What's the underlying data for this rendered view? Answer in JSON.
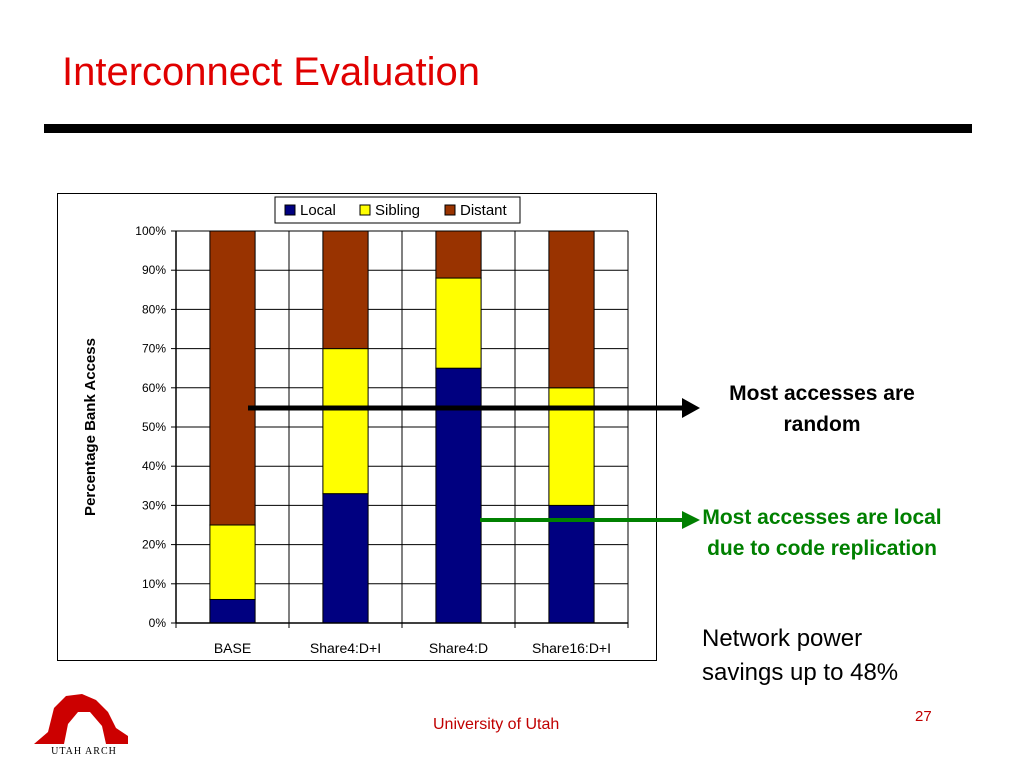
{
  "slide": {
    "title": "Interconnect Evaluation",
    "callout_random": "Most accesses are random",
    "callout_local": "Most accesses are local due to code replication",
    "power_note_line1": "Network power",
    "power_note_line2": "savings up to 48%",
    "footer": "University of Utah",
    "page_number": "27",
    "logo_text": "UTAH ARCH"
  },
  "colors": {
    "title": "#e00000",
    "local": "#000080",
    "sibling": "#ffff00",
    "distant": "#993300",
    "callout_local": "#008000",
    "footer": "#c00000"
  },
  "chart_data": {
    "type": "bar",
    "stacked": true,
    "categories": [
      "BASE",
      "Share4:D+I",
      "Share4:D",
      "Share16:D+I"
    ],
    "series": [
      {
        "name": "Local",
        "values": [
          6,
          33,
          65,
          30
        ]
      },
      {
        "name": "Sibling",
        "values": [
          19,
          37,
          23,
          30
        ]
      },
      {
        "name": "Distant",
        "values": [
          75,
          30,
          12,
          40
        ]
      }
    ],
    "ylabel": "Percentage Bank Access",
    "ylim": [
      0,
      100
    ],
    "yticks": [
      "0%",
      "10%",
      "20%",
      "30%",
      "40%",
      "50%",
      "60%",
      "70%",
      "80%",
      "90%",
      "100%"
    ],
    "legend": "top",
    "grid": true
  }
}
